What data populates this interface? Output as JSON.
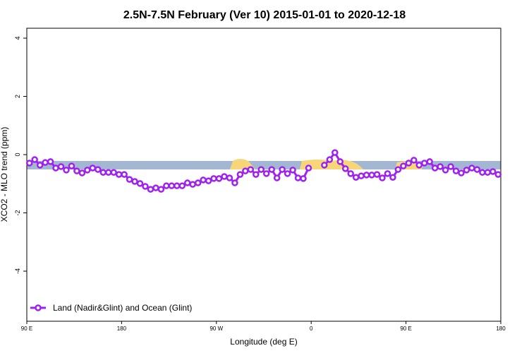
{
  "chart_data": {
    "type": "line",
    "title": "2.5N-7.5N February (Ver 10)   2015-01-01 to 2020-12-18",
    "x_label": "Longitude (deg E)",
    "y_label": "XCO2 - MLO trend (ppm)",
    "x": [
      92.5,
      97.5,
      102.5,
      107.5,
      112.5,
      117.5,
      122.5,
      127.5,
      132.5,
      137.5,
      142.5,
      147.5,
      152.5,
      157.5,
      162.5,
      167.5,
      172.5,
      177.5,
      182.5,
      187.5,
      192.5,
      197.5,
      202.5,
      207.5,
      212.5,
      217.5,
      222.5,
      227.5,
      232.5,
      237.5,
      242.5,
      247.5,
      252.5,
      257.5,
      262.5,
      267.5,
      272.5,
      277.5,
      282.5,
      287.5,
      292.5,
      297.5,
      302.5,
      307.5,
      312.5,
      317.5,
      322.5,
      327.5,
      332.5,
      337.5,
      342.5,
      347.5,
      352.5,
      357.5,
      362.5,
      367.5,
      372.5,
      377.5,
      382.5,
      387.5,
      392.5,
      397.5,
      402.5,
      407.5,
      412.5,
      417.5,
      422.5,
      427.5,
      432.5,
      437.5,
      442.5,
      447.5,
      452.5,
      457.5,
      462.5,
      467.5,
      472.5,
      477.5,
      482.5,
      487.5,
      492.5,
      497.5,
      502.5,
      507.5,
      512.5,
      517.5,
      522.5,
      527.5,
      532.5,
      537.5
    ],
    "series": [
      {
        "name": "Land (Nadir&Glint) and Ocean (Glint)",
        "color": "#a020f0",
        "values": [
          -0.29,
          -0.17,
          -0.36,
          -0.27,
          -0.24,
          -0.46,
          -0.41,
          -0.53,
          -0.39,
          -0.56,
          -0.63,
          -0.53,
          -0.46,
          -0.51,
          -0.61,
          -0.61,
          -0.61,
          -0.68,
          -0.68,
          -0.85,
          -0.92,
          -0.99,
          -1.09,
          -1.19,
          -1.14,
          -1.19,
          -1.07,
          -1.07,
          -1.07,
          -1.07,
          -0.97,
          -1.02,
          -0.97,
          -0.87,
          -0.9,
          -0.82,
          -0.82,
          -0.75,
          -0.8,
          -0.97,
          -0.68,
          -0.56,
          -0.51,
          -0.68,
          -0.51,
          -0.65,
          -0.51,
          -0.8,
          -0.51,
          -0.65,
          -0.53,
          -0.8,
          -0.82,
          -0.46,
          null,
          null,
          -0.36,
          -0.17,
          0.07,
          -0.24,
          -0.48,
          -0.65,
          -0.78,
          -0.73,
          -0.7,
          -0.7,
          -0.68,
          -0.8,
          -0.65,
          -0.78,
          -0.51,
          -0.39,
          -0.29,
          -0.19,
          -0.36,
          -0.29,
          -0.24,
          -0.46,
          -0.41,
          -0.53,
          -0.41,
          -0.56,
          -0.63,
          -0.53,
          -0.46,
          -0.51,
          -0.61,
          -0.61,
          -0.58,
          -0.68
        ]
      }
    ],
    "xlim": [
      90,
      540
    ],
    "xticks": [
      {
        "value": 90,
        "label": "90 E"
      },
      180,
      {
        "value": 270,
        "label": "90 W"
      },
      {
        "value": 360,
        "label": "0"
      },
      {
        "value": 450,
        "label": "90 E"
      },
      {
        "value": 540,
        "label": "180"
      }
    ],
    "ylim": [
      -5.72,
      4.34
    ],
    "yticks": [
      -4,
      -2,
      0,
      2,
      4
    ],
    "legend": "bottom-left"
  }
}
